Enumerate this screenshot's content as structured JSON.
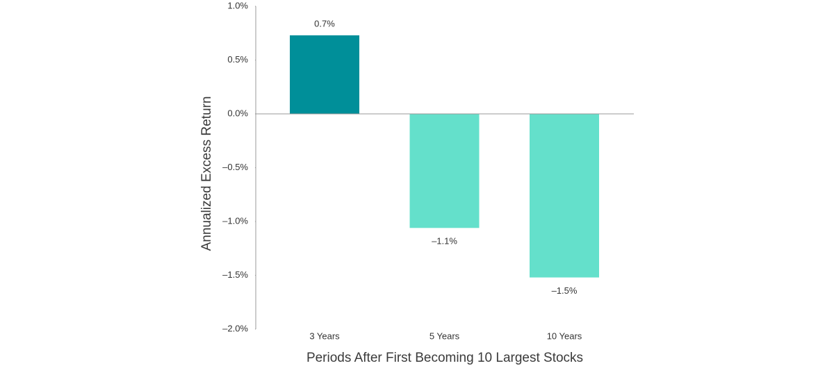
{
  "chart_data": {
    "type": "bar",
    "ylabel": "Annualized Excess Return",
    "xlabel": "Periods After First Becoming 10 Largest Stocks",
    "categories": [
      "3 Years",
      "5 Years",
      "10 Years"
    ],
    "values": [
      0.73,
      -1.06,
      -1.52
    ],
    "value_labels": [
      "0.7%",
      "–1.1%",
      "–1.5%"
    ],
    "colors": [
      "#008f99",
      "#64e0cb",
      "#64e0cb"
    ],
    "ylim": [
      -2.0,
      1.0
    ],
    "yticks": [
      {
        "value": 1.0,
        "label": "1.0%"
      },
      {
        "value": 0.5,
        "label": "0.5%"
      },
      {
        "value": 0.0,
        "label": "0.0%"
      },
      {
        "value": -0.5,
        "label": "–0.5%"
      },
      {
        "value": -1.0,
        "label": "–1.0%"
      },
      {
        "value": -1.5,
        "label": "–1.5%"
      },
      {
        "value": -2.0,
        "label": "–2.0%"
      }
    ],
    "grid": false
  }
}
